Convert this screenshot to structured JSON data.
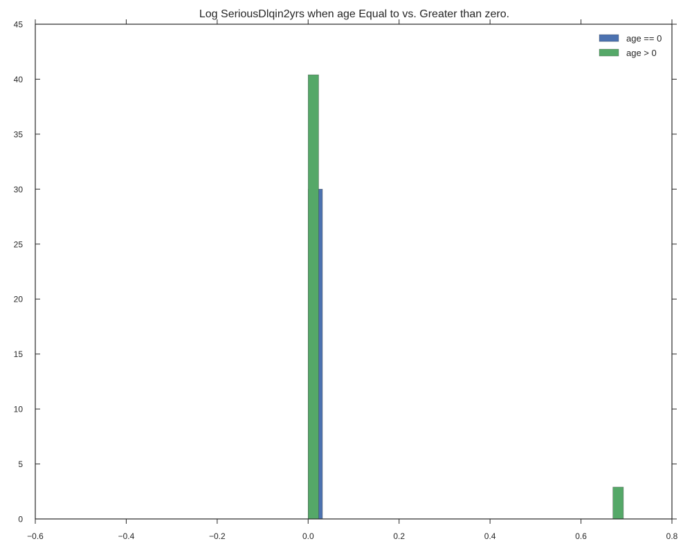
{
  "chart_data": {
    "type": "bar",
    "title": "Log SeriousDlqin2yrs when age Equal to vs. Greater than zero.",
    "xlabel": "",
    "ylabel": "",
    "xlim": [
      -0.6,
      0.8
    ],
    "ylim": [
      0,
      45
    ],
    "xticks": [
      "−0.6",
      "−0.4",
      "−0.2",
      "0.0",
      "0.2",
      "0.4",
      "0.6",
      "0.8"
    ],
    "yticks": [
      "0",
      "5",
      "10",
      "15",
      "20",
      "25",
      "30",
      "35",
      "40",
      "45"
    ],
    "grid": false,
    "legend_position": "top-right",
    "series": [
      {
        "name": "age == 0",
        "color": "#4C72B0",
        "bins": [
          {
            "x0": 0.0,
            "x1": 0.0315,
            "value": 30
          }
        ]
      },
      {
        "name": "age > 0",
        "color": "#55A868",
        "bins": [
          {
            "x0": 0.0,
            "x1": 0.0231,
            "value": 40.4
          },
          {
            "x0": 0.6702,
            "x1": 0.6933,
            "value": 2.9
          }
        ]
      }
    ]
  }
}
